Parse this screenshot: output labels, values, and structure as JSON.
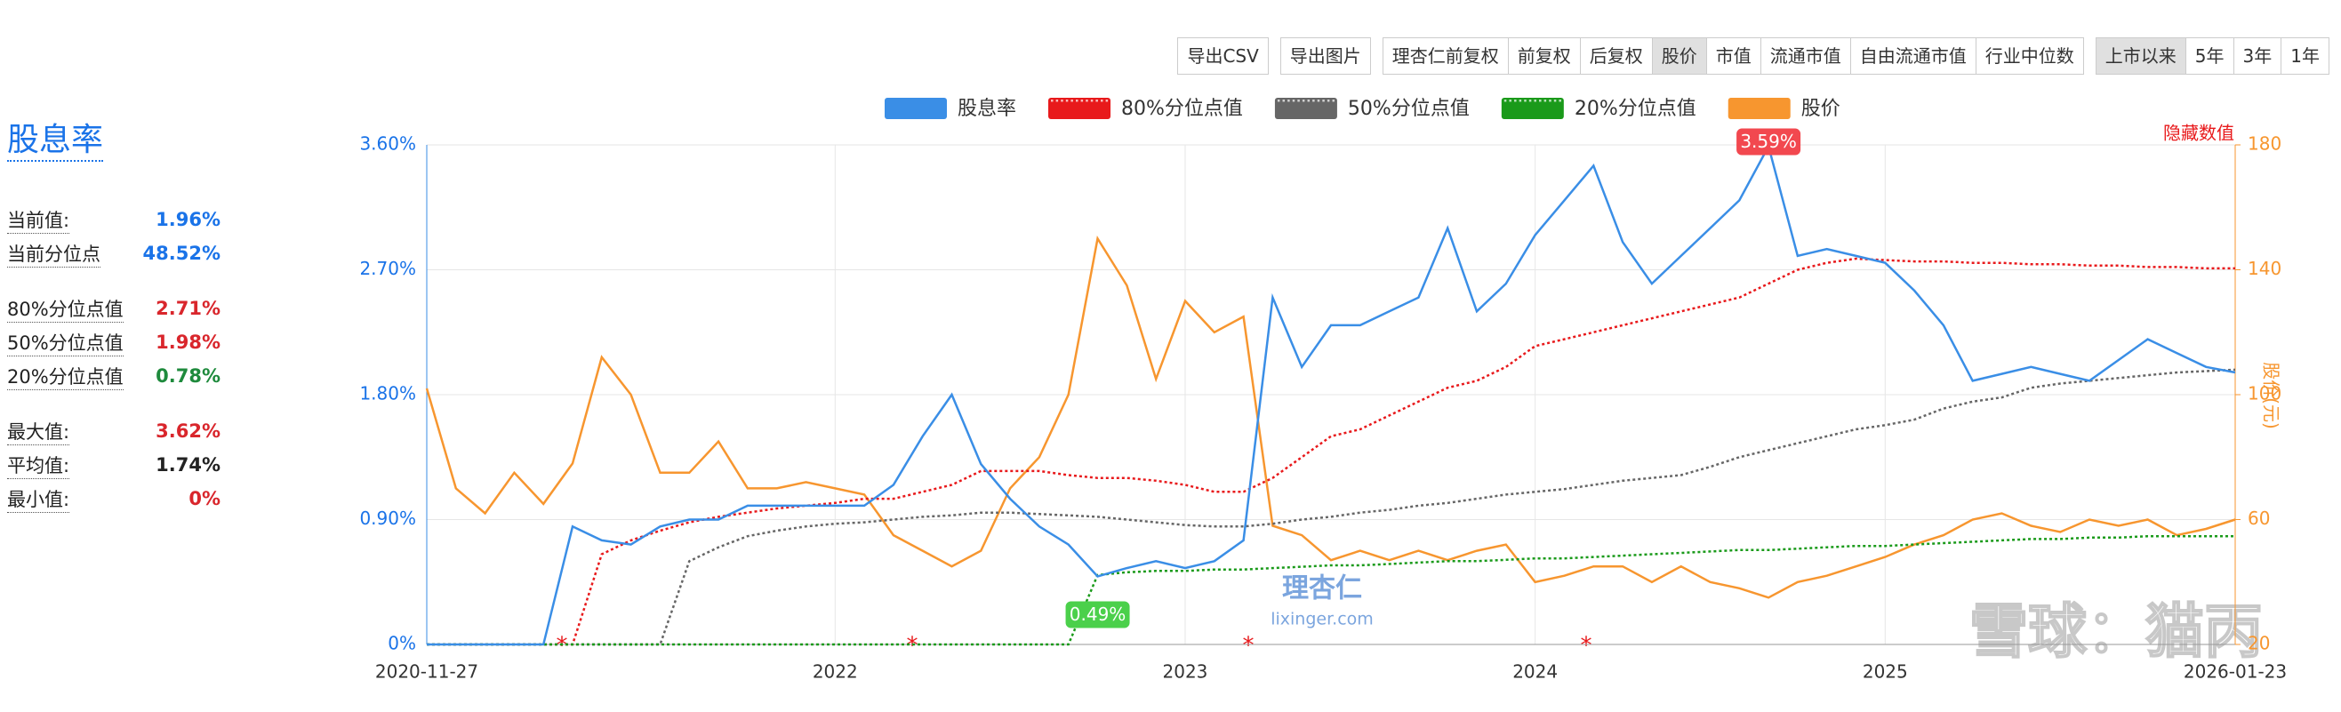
{
  "toolbar": {
    "groups": [
      [
        "导出CSV"
      ],
      [
        "导出图片"
      ],
      [
        "理杏仁前复权",
        "前复权",
        "后复权",
        "股价",
        "市值",
        "流通市值",
        "自由流通市值",
        "行业中位数"
      ],
      [
        "上市以来",
        "5年",
        "3年",
        "1年"
      ]
    ]
  },
  "sidebar": {
    "title": "股息率",
    "groups": [
      [
        {
          "label": "当前值:",
          "value": "1.96%",
          "color": "#1a73e8"
        },
        {
          "label": "当前分位点",
          "value": "48.52%",
          "color": "#1a73e8"
        }
      ],
      [
        {
          "label": "80%分位点值",
          "value": "2.71%",
          "color": "#d9262c"
        },
        {
          "label": "50%分位点值",
          "value": "1.98%",
          "color": "#d9262c"
        },
        {
          "label": "20%分位点值",
          "value": "0.78%",
          "color": "#1e8a3c"
        }
      ],
      [
        {
          "label": "最大值:",
          "value": "3.62%",
          "color": "#d9262c"
        },
        {
          "label": "平均值:",
          "value": "1.74%",
          "color": "#222222"
        },
        {
          "label": "最小值:",
          "value": "0%",
          "color": "#d9262c"
        }
      ]
    ]
  },
  "watermarks": [
    "理杏仁",
    "lixinger.com",
    "雪球：猫丙"
  ],
  "chart_data": {
    "type": "line",
    "categories": [
      "2020-11-27",
      null,
      null,
      null,
      null,
      null,
      null,
      null,
      null,
      null,
      null,
      null,
      null,
      null,
      "2022",
      null,
      null,
      null,
      null,
      null,
      null,
      null,
      null,
      null,
      null,
      null,
      "2023",
      null,
      null,
      null,
      null,
      null,
      null,
      null,
      null,
      null,
      null,
      null,
      "2024",
      null,
      null,
      null,
      null,
      null,
      null,
      null,
      null,
      null,
      null,
      null,
      "2025",
      null,
      null,
      null,
      null,
      null,
      null,
      null,
      null,
      null,
      null,
      null,
      "2026-01-23"
    ],
    "series": [
      {
        "name": "股息率",
        "color": "#3a8ee6",
        "line_style": "solid",
        "values": [
          0,
          0,
          0,
          0,
          0,
          0.85,
          0.75,
          0.72,
          0.85,
          0.9,
          0.9,
          1.0,
          1.0,
          1.0,
          1.0,
          1.0,
          1.15,
          1.5,
          1.8,
          1.3,
          1.05,
          0.85,
          0.72,
          0.49,
          0.55,
          0.6,
          0.55,
          0.6,
          0.75,
          2.5,
          2.0,
          2.3,
          2.3,
          2.4,
          2.5,
          3.0,
          2.4,
          2.6,
          2.95,
          3.2,
          3.45,
          2.9,
          2.6,
          2.8,
          3.0,
          3.2,
          3.59,
          2.8,
          2.85,
          2.8,
          2.75,
          2.55,
          2.3,
          1.9,
          1.95,
          2.0,
          1.95,
          1.9,
          2.05,
          2.2,
          2.1,
          2.0,
          1.96
        ]
      },
      {
        "name": "80%分位点值",
        "color": "#e8191b",
        "line_style": "dotted",
        "values": [
          0,
          0,
          0,
          0,
          0,
          0,
          0.65,
          0.75,
          0.82,
          0.88,
          0.92,
          0.95,
          0.98,
          1.0,
          1.02,
          1.05,
          1.05,
          1.1,
          1.15,
          1.25,
          1.25,
          1.25,
          1.22,
          1.2,
          1.2,
          1.18,
          1.15,
          1.1,
          1.1,
          1.2,
          1.35,
          1.5,
          1.55,
          1.65,
          1.75,
          1.85,
          1.9,
          2.0,
          2.15,
          2.2,
          2.25,
          2.3,
          2.35,
          2.4,
          2.45,
          2.5,
          2.6,
          2.7,
          2.75,
          2.78,
          2.77,
          2.76,
          2.76,
          2.75,
          2.75,
          2.74,
          2.74,
          2.73,
          2.73,
          2.72,
          2.72,
          2.71,
          2.71
        ]
      },
      {
        "name": "50%分位点值",
        "color": "#666666",
        "line_style": "dotted",
        "values": [
          0,
          0,
          0,
          0,
          0,
          0,
          0,
          0,
          0,
          0.6,
          0.7,
          0.78,
          0.82,
          0.85,
          0.87,
          0.88,
          0.9,
          0.92,
          0.93,
          0.95,
          0.95,
          0.94,
          0.93,
          0.92,
          0.9,
          0.88,
          0.86,
          0.85,
          0.85,
          0.87,
          0.9,
          0.92,
          0.95,
          0.97,
          1.0,
          1.02,
          1.05,
          1.08,
          1.1,
          1.12,
          1.15,
          1.18,
          1.2,
          1.22,
          1.28,
          1.35,
          1.4,
          1.45,
          1.5,
          1.55,
          1.58,
          1.62,
          1.7,
          1.75,
          1.78,
          1.85,
          1.88,
          1.9,
          1.92,
          1.94,
          1.96,
          1.97,
          1.98
        ]
      },
      {
        "name": "20%分位点值",
        "color": "#1a9a1a",
        "line_style": "dotted",
        "values": [
          0,
          0,
          0,
          0,
          0,
          0,
          0,
          0,
          0,
          0,
          0,
          0,
          0,
          0,
          0,
          0,
          0,
          0,
          0,
          0,
          0,
          0,
          0,
          0.5,
          0.52,
          0.53,
          0.53,
          0.54,
          0.54,
          0.55,
          0.56,
          0.57,
          0.57,
          0.58,
          0.59,
          0.6,
          0.6,
          0.61,
          0.62,
          0.62,
          0.63,
          0.64,
          0.65,
          0.66,
          0.67,
          0.68,
          0.68,
          0.69,
          0.7,
          0.71,
          0.71,
          0.72,
          0.73,
          0.74,
          0.75,
          0.76,
          0.76,
          0.77,
          0.77,
          0.78,
          0.78,
          0.78,
          0.78
        ]
      },
      {
        "name": "股价",
        "color": "#f7962f",
        "line_style": "solid",
        "axis": "y2",
        "values": [
          102,
          70,
          62,
          75,
          65,
          78,
          112,
          100,
          75,
          75,
          85,
          70,
          70,
          72,
          70,
          68,
          55,
          50,
          45,
          50,
          70,
          80,
          100,
          150,
          135,
          105,
          130,
          120,
          125,
          58,
          55,
          47,
          50,
          47,
          50,
          47,
          50,
          52,
          40,
          42,
          45,
          45,
          40,
          45,
          40,
          38,
          35,
          40,
          42,
          45,
          48,
          52,
          55,
          60,
          62,
          58,
          56,
          60,
          58,
          60,
          55,
          57,
          60
        ]
      }
    ],
    "ylim": [
      0,
      3.6
    ],
    "yticks": [
      {
        "value": 0,
        "label": "0%"
      },
      {
        "value": 0.9,
        "label": "0.90%"
      },
      {
        "value": 1.8,
        "label": "1.80%"
      },
      {
        "value": 2.7,
        "label": "2.70%"
      },
      {
        "value": 3.6,
        "label": "3.60%"
      }
    ],
    "y2lim": [
      20,
      180
    ],
    "y2ticks": [
      20,
      60,
      100,
      140,
      180
    ],
    "y2label": "股价(元)",
    "max_label": "3.59%",
    "min_label": "0.49%",
    "hidden_values_label": "隐藏数值",
    "grid": true
  }
}
